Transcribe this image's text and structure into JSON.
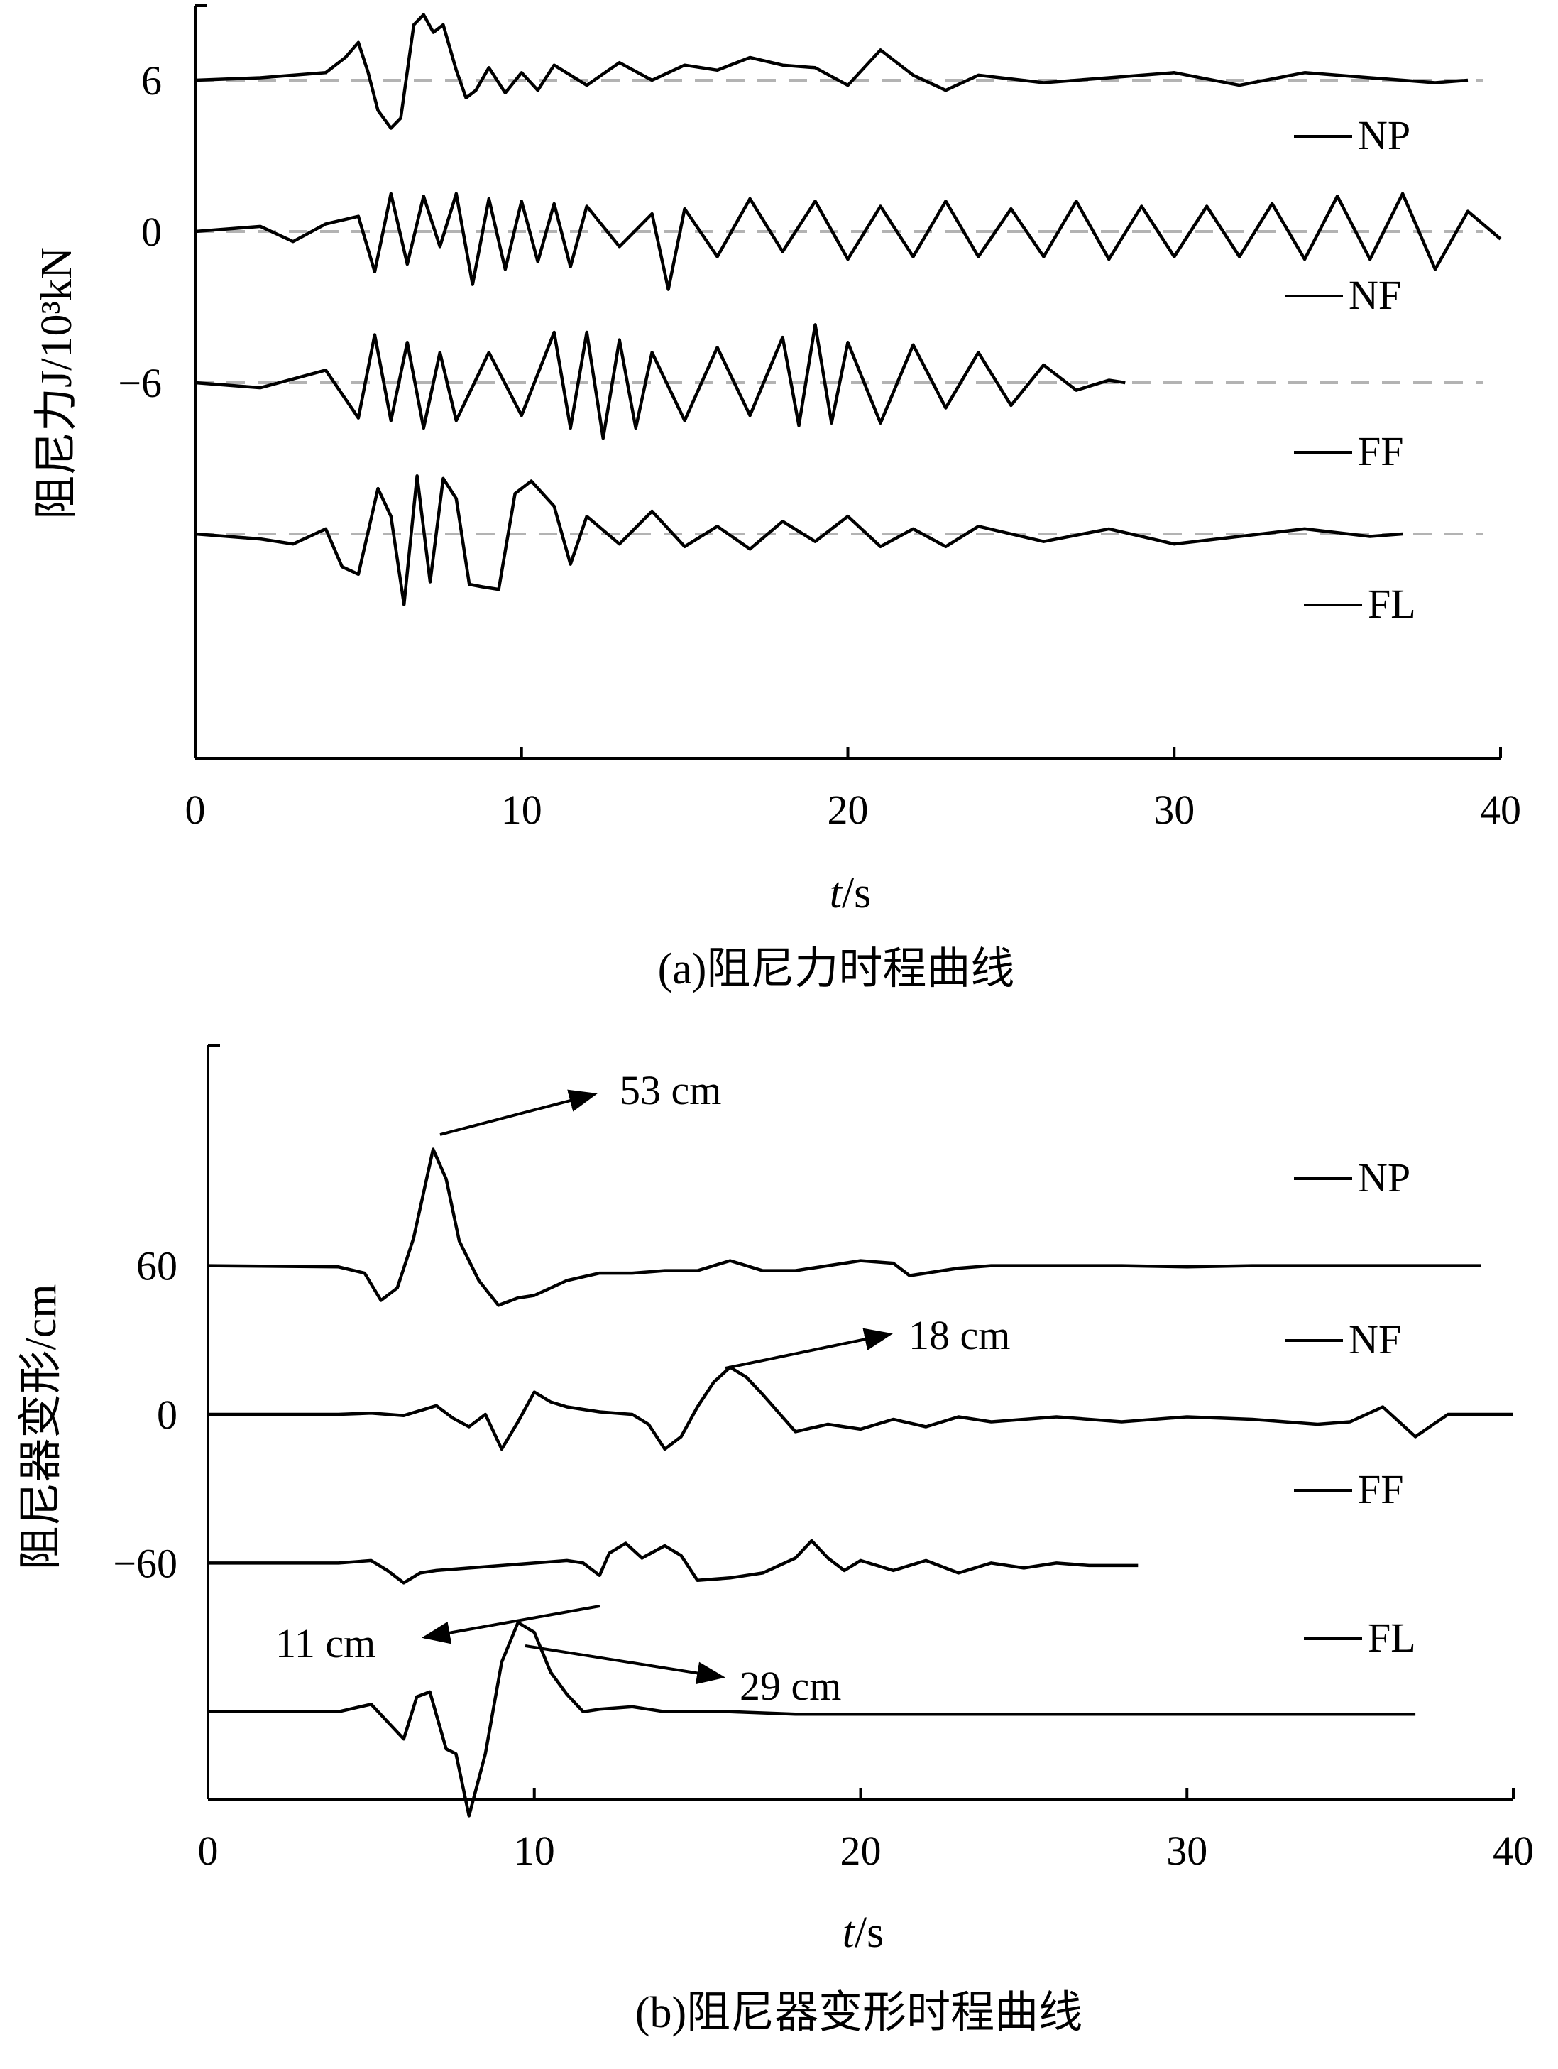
{
  "chart_data": [
    {
      "type": "line",
      "caption": "(a)阻尼力时程曲线",
      "xlabel_italic": "t",
      "xlabel_unit": "/s",
      "ylabel": "阻尼力J/10³kN",
      "xlim": [
        0,
        40
      ],
      "xticks": [
        "0",
        "10",
        "20",
        "30",
        "40"
      ],
      "yticks": [
        "6",
        "0",
        "−6"
      ],
      "series": [
        {
          "name": "NP",
          "baseline": 6,
          "t_end": 39,
          "t": [
            0,
            2,
            4,
            4.6,
            5,
            5.3,
            5.6,
            6,
            6.3,
            6.7,
            7,
            7.3,
            7.6,
            8,
            8.3,
            8.6,
            9,
            9.5,
            10,
            10.5,
            11,
            12,
            13,
            14,
            15,
            16,
            17,
            18,
            19,
            20,
            21,
            22,
            23,
            24,
            26,
            28,
            30,
            32,
            34,
            36,
            38,
            39
          ],
          "v": [
            6,
            6.1,
            6.3,
            6.9,
            7.5,
            6.3,
            4.8,
            4.1,
            4.5,
            8.2,
            8.6,
            7.9,
            8.2,
            6.4,
            5.3,
            5.6,
            6.5,
            5.5,
            6.3,
            5.6,
            6.6,
            5.8,
            6.7,
            6,
            6.6,
            6.4,
            6.9,
            6.6,
            6.5,
            5.8,
            7.2,
            6.2,
            5.6,
            6.2,
            5.9,
            6.1,
            6.3,
            5.8,
            6.3,
            6.1,
            5.9,
            6
          ]
        },
        {
          "name": "NF",
          "baseline": 0,
          "t_end": 40,
          "t": [
            0,
            2,
            3,
            4,
            5,
            5.5,
            6,
            6.5,
            7,
            7.5,
            8,
            8.5,
            9,
            9.5,
            10,
            10.5,
            11,
            11.5,
            12,
            13,
            14,
            14.5,
            15,
            16,
            17,
            18,
            19,
            20,
            21,
            22,
            23,
            24,
            25,
            26,
            27,
            28,
            29,
            30,
            31,
            32,
            33,
            34,
            35,
            36,
            37,
            38,
            39,
            40
          ],
          "v": [
            0,
            0.2,
            -0.4,
            0.3,
            0.6,
            -1.6,
            1.5,
            -1.3,
            1.4,
            -0.6,
            1.5,
            -2.1,
            1.3,
            -1.5,
            1.2,
            -1.2,
            1.1,
            -1.4,
            1,
            -0.6,
            0.7,
            -2.3,
            0.9,
            -1,
            1.3,
            -0.8,
            1.2,
            -1.1,
            1,
            -1,
            1.2,
            -1,
            0.9,
            -1,
            1.2,
            -1.1,
            1,
            -1,
            1,
            -1,
            1.1,
            -1.1,
            1.4,
            -1.1,
            1.5,
            -1.5,
            0.8,
            -0.3
          ]
        },
        {
          "name": "FF",
          "baseline": -6,
          "t_end": 28.5,
          "t": [
            0,
            2,
            4,
            5,
            5.5,
            6,
            6.5,
            7,
            7.5,
            8,
            9,
            10,
            11,
            11.5,
            12,
            12.5,
            13,
            13.5,
            14,
            15,
            16,
            17,
            18,
            18.5,
            19,
            19.5,
            20,
            21,
            22,
            23,
            24,
            25,
            26,
            27,
            28,
            28.5
          ],
          "v": [
            -6,
            -6.2,
            -5.5,
            -7.4,
            -4.1,
            -7.5,
            -4.4,
            -7.8,
            -4.8,
            -7.5,
            -4.8,
            -7.3,
            -4,
            -7.8,
            -4,
            -8.2,
            -4.3,
            -7.8,
            -4.8,
            -7.5,
            -4.6,
            -7.3,
            -4.2,
            -7.7,
            -3.7,
            -7.6,
            -4.4,
            -7.6,
            -4.5,
            -7,
            -4.8,
            -6.9,
            -5.3,
            -6.3,
            -5.9,
            -6
          ]
        },
        {
          "name": "FL",
          "baseline": -12,
          "t_end": 37,
          "t": [
            0,
            2,
            3,
            4,
            4.5,
            5,
            5.6,
            6,
            6.4,
            6.8,
            7.2,
            7.6,
            8,
            8.4,
            8.8,
            9.3,
            9.8,
            10.3,
            11,
            11.5,
            12,
            13,
            14,
            15,
            16,
            17,
            18,
            19,
            20,
            21,
            22,
            23,
            24,
            26,
            28,
            30,
            32,
            34,
            36,
            37
          ],
          "v": [
            -12,
            -12.2,
            -12.4,
            -11.8,
            -13.3,
            -13.6,
            -10.2,
            -11.3,
            -14.8,
            -9.7,
            -13.9,
            -9.8,
            -10.6,
            -14,
            -14.1,
            -14.2,
            -10.4,
            -9.9,
            -10.9,
            -13.2,
            -11.3,
            -12.4,
            -11.1,
            -12.5,
            -11.7,
            -12.6,
            -11.5,
            -12.3,
            -11.3,
            -12.5,
            -11.8,
            -12.5,
            -11.7,
            -12.3,
            -11.8,
            -12.4,
            -12.1,
            -11.8,
            -12.1,
            -12
          ]
        }
      ]
    },
    {
      "type": "line",
      "caption": "(b)阻尼器变形时程曲线",
      "xlabel_italic": "t",
      "xlabel_unit": "/s",
      "ylabel": "阻尼器变形/cm",
      "xlim": [
        0,
        40
      ],
      "xticks": [
        "0",
        "10",
        "20",
        "30",
        "40"
      ],
      "yticks": [
        "60",
        "0",
        "−60"
      ],
      "annotations": [
        "53 cm",
        "18 cm",
        "11 cm",
        "29 cm"
      ],
      "series": [
        {
          "name": "NP",
          "baseline": 60,
          "t_end": 39,
          "t": [
            0,
            4,
            4.8,
            5.3,
            5.8,
            6.3,
            6.9,
            7.3,
            7.7,
            8.3,
            8.9,
            9.5,
            10,
            11,
            12,
            13,
            14,
            15,
            16,
            17,
            18,
            19,
            20,
            21,
            21.5,
            22,
            23,
            24,
            26,
            28,
            30,
            32,
            34,
            36,
            38,
            39
          ],
          "v": [
            60,
            59.5,
            57,
            46,
            51,
            71,
            107,
            95,
            70,
            54,
            44,
            47,
            48,
            54,
            57,
            57,
            58,
            58,
            62,
            58,
            58,
            60,
            62,
            61,
            56,
            57,
            59,
            60,
            60,
            60,
            59.5,
            60,
            60,
            60,
            60,
            60
          ]
        },
        {
          "name": "NF",
          "baseline": 0,
          "t_end": 40,
          "t": [
            0,
            4,
            5,
            6,
            7,
            7.5,
            8,
            8.5,
            9,
            9.5,
            10,
            10.5,
            11,
            12,
            13,
            13.5,
            14,
            14.5,
            15,
            15.5,
            16,
            16.5,
            17,
            18,
            19,
            20,
            21,
            22,
            23,
            24,
            26,
            28,
            30,
            32,
            34,
            35,
            36,
            37,
            38,
            39,
            40
          ],
          "v": [
            0,
            0,
            0.5,
            -0.5,
            3.5,
            -1.5,
            -5,
            0,
            -14,
            -3,
            9,
            5,
            3,
            1,
            0,
            -4,
            -14,
            -9,
            3,
            13,
            19,
            15,
            8,
            -7,
            -4,
            -6,
            -2,
            -5,
            -1,
            -3,
            -1,
            -3,
            -1,
            -2,
            -4,
            -3,
            3,
            -9,
            0,
            0,
            0
          ]
        },
        {
          "name": "FF",
          "baseline": -60,
          "t_end": 28.5,
          "t": [
            0,
            4,
            5,
            5.5,
            6,
            6.5,
            7,
            8,
            9,
            10,
            11,
            11.5,
            12,
            12.3,
            12.8,
            13.3,
            14,
            14.5,
            15,
            16,
            17,
            18,
            18.5,
            19,
            19.5,
            20,
            21,
            22,
            23,
            24,
            25,
            26,
            27,
            28,
            28.5
          ],
          "v": [
            -60,
            -60,
            -59,
            -63,
            -68,
            -64,
            -63,
            -62,
            -61,
            -60,
            -59,
            -60,
            -65,
            -56,
            -52,
            -58,
            -53,
            -57,
            -67,
            -66,
            -64,
            -58,
            -51,
            -58,
            -63,
            -59,
            -63,
            -59,
            -64,
            -60,
            -62,
            -60,
            -61,
            -61,
            -61
          ]
        },
        {
          "name": "FL",
          "baseline": -120,
          "t_end": 37,
          "t": [
            0,
            4,
            5,
            5.5,
            6,
            6.4,
            6.8,
            7.3,
            7.6,
            8,
            8.5,
            9,
            9.5,
            10,
            10.5,
            11,
            11.5,
            12,
            13,
            14,
            16,
            18,
            20,
            22,
            24,
            26,
            28,
            30,
            32,
            34,
            36,
            37
          ],
          "v": [
            -120,
            -120,
            -117,
            -124,
            -131,
            -114,
            -112,
            -135,
            -137,
            -162,
            -137,
            -100,
            -84,
            -88,
            -104,
            -113,
            -120,
            -119,
            -118,
            -120,
            -120,
            -121,
            -121,
            -121,
            -121,
            -121,
            -121,
            -121,
            -121,
            -121,
            -121,
            -121
          ]
        }
      ]
    }
  ]
}
